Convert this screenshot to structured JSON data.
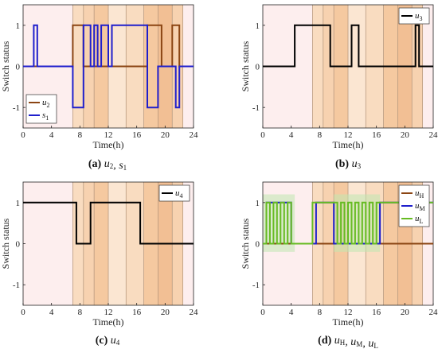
{
  "chart_data": [
    {
      "type": "line",
      "id": "a",
      "caption": {
        "letter": "(a)",
        "symbols": [
          {
            "base": "u",
            "sub": "2"
          },
          {
            "sep": ", "
          },
          {
            "base": "s",
            "sub": "1"
          }
        ]
      },
      "xlabel": "Time(h)",
      "ylabel": "Switch status",
      "xlim": [
        0,
        24
      ],
      "ylim": [
        -1.5,
        1.5
      ],
      "xticks": [
        0,
        4,
        8,
        12,
        16,
        20,
        24
      ],
      "yticks": [
        1,
        0,
        -1
      ],
      "legend_position": "bottom-left",
      "series": [
        {
          "name": "u2",
          "name_base": "u",
          "name_sub": "2",
          "color": "#8B4513",
          "x": [
            0,
            7,
            7,
            8.5,
            8.5,
            17.5,
            17.5,
            19.5,
            19.5,
            21,
            21,
            22,
            22,
            24
          ],
          "y": [
            0,
            0,
            1,
            1,
            0,
            0,
            1,
            1,
            0,
            0,
            1,
            1,
            0,
            0
          ]
        },
        {
          "name": "s1",
          "name_base": "s",
          "name_sub": "1",
          "color": "#1f1fcc",
          "x": [
            0,
            1.5,
            1.5,
            2,
            2,
            7,
            7,
            8.5,
            8.5,
            9.5,
            9.5,
            10,
            10,
            10.5,
            10.5,
            11,
            11,
            12,
            12,
            12.5,
            12.5,
            17.5,
            17.5,
            19,
            19,
            21.5,
            21.5,
            22,
            22,
            24
          ],
          "y": [
            0,
            0,
            1,
            1,
            0,
            0,
            -1,
            -1,
            1,
            1,
            0,
            0,
            1,
            1,
            0,
            0,
            1,
            1,
            0,
            0,
            1,
            1,
            -1,
            -1,
            0,
            0,
            -1,
            -1,
            0,
            0
          ]
        }
      ]
    },
    {
      "type": "line",
      "id": "b",
      "caption": {
        "letter": "(b)",
        "symbols": [
          {
            "base": "u",
            "sub": "3"
          }
        ]
      },
      "xlabel": "Time(h)",
      "ylabel": "Switch status",
      "xlim": [
        0,
        24
      ],
      "ylim": [
        -1.5,
        1.5
      ],
      "xticks": [
        0,
        4,
        8,
        12,
        16,
        20,
        24
      ],
      "yticks": [
        1,
        0,
        -1
      ],
      "legend_position": "top-right",
      "series": [
        {
          "name": "u3",
          "name_base": "u",
          "name_sub": "3",
          "color": "#000000",
          "x": [
            0,
            4.5,
            4.5,
            9.5,
            9.5,
            12.5,
            12.5,
            13.5,
            13.5,
            21.5,
            21.5,
            22,
            22,
            24
          ],
          "y": [
            0,
            0,
            1,
            1,
            0,
            0,
            1,
            1,
            0,
            0,
            1,
            1,
            0,
            0
          ]
        }
      ]
    },
    {
      "type": "line",
      "id": "c",
      "caption": {
        "letter": "(c)",
        "symbols": [
          {
            "base": "u",
            "sub": "4"
          }
        ]
      },
      "xlabel": "Time(h)",
      "ylabel": "Switch status",
      "xlim": [
        0,
        24
      ],
      "ylim": [
        -1.5,
        1.5
      ],
      "xticks": [
        0,
        4,
        8,
        12,
        16,
        20,
        24
      ],
      "yticks": [
        1,
        0,
        -1
      ],
      "legend_position": "top-right",
      "series": [
        {
          "name": "u4",
          "name_base": "u",
          "name_sub": "4",
          "color": "#000000",
          "x": [
            0,
            7.5,
            7.5,
            9.5,
            9.5,
            16.5,
            16.5,
            24
          ],
          "y": [
            1,
            1,
            0,
            0,
            1,
            1,
            0,
            0
          ]
        }
      ]
    },
    {
      "type": "line",
      "id": "d",
      "caption": {
        "letter": "(d)",
        "symbols": [
          {
            "base": "u",
            "sub": "H"
          },
          {
            "sep": ", "
          },
          {
            "base": "u",
            "sub": "M"
          },
          {
            "sep": ", "
          },
          {
            "base": "u",
            "sub": "L"
          }
        ]
      },
      "xlabel": "Time(h)",
      "ylabel": "Switch status",
      "xlim": [
        0,
        24
      ],
      "ylim": [
        -1.5,
        1.5
      ],
      "xticks": [
        0,
        4,
        8,
        12,
        16,
        20,
        24
      ],
      "yticks": [
        1,
        0,
        -1
      ],
      "legend_position": "top-right",
      "series": [
        {
          "name": "uH",
          "name_base": "u",
          "name_sub": "H",
          "color": "#8B4513",
          "x": [
            0,
            24
          ],
          "y": [
            0,
            0
          ]
        },
        {
          "name": "uM",
          "name_base": "u",
          "name_sub": "M",
          "color": "#1f1fcc",
          "x": [
            0,
            0.5,
            0.5,
            4,
            4,
            7.5,
            7.5,
            10,
            10,
            16.5,
            16.5,
            24
          ],
          "y": [
            0,
            0,
            1,
            1,
            0,
            0,
            1,
            1,
            0,
            0,
            1,
            1
          ]
        },
        {
          "name": "uL",
          "name_base": "u",
          "name_sub": "L",
          "color": "#66bb22",
          "x": [
            0,
            0.5,
            0.5,
            1.0,
            1.0,
            1.5,
            1.5,
            2.0,
            2.0,
            2.5,
            2.5,
            3.0,
            3.0,
            3.5,
            3.5,
            4.0,
            4.0,
            7.0,
            7.0,
            10.5,
            10.5,
            11.0,
            11.0,
            11.5,
            11.5,
            12.0,
            12.0,
            12.5,
            12.5,
            13.0,
            13.0,
            13.5,
            13.5,
            14.0,
            14.0,
            14.5,
            14.5,
            15.0,
            15.0,
            15.5,
            15.5,
            16.0,
            16.0,
            24
          ],
          "y": [
            0,
            0,
            1,
            1,
            0,
            0,
            1,
            1,
            0,
            0,
            1,
            1,
            0,
            0,
            1,
            1,
            0,
            0,
            1,
            1,
            0,
            0,
            1,
            1,
            0,
            0,
            1,
            1,
            0,
            0,
            1,
            1,
            0,
            0,
            1,
            1,
            0,
            0,
            1,
            1,
            0,
            0,
            1,
            1
          ]
        }
      ]
    }
  ],
  "shading": {
    "periods": [
      {
        "x0": 0,
        "x1": 7,
        "color": "#fdeeee"
      },
      {
        "x0": 7,
        "x1": 8.5,
        "color": "#f9dcc0"
      },
      {
        "x0": 8.5,
        "x1": 10,
        "color": "#f7d2b0"
      },
      {
        "x0": 10,
        "x1": 12,
        "color": "#f5c9a0"
      },
      {
        "x0": 12,
        "x1": 14.5,
        "color": "#fbe6d2"
      },
      {
        "x0": 14.5,
        "x1": 17,
        "color": "#f9dcc0"
      },
      {
        "x0": 17,
        "x1": 19,
        "color": "#f5c9a0"
      },
      {
        "x0": 19,
        "x1": 21,
        "color": "#f2bf94"
      },
      {
        "x0": 21,
        "x1": 22.5,
        "color": "#f7d2b0"
      },
      {
        "x0": 22.5,
        "x1": 24,
        "color": "#fdeeee"
      }
    ],
    "dividers": [
      7,
      8.5,
      10,
      12,
      14.5,
      17,
      19,
      21,
      22.5
    ]
  }
}
